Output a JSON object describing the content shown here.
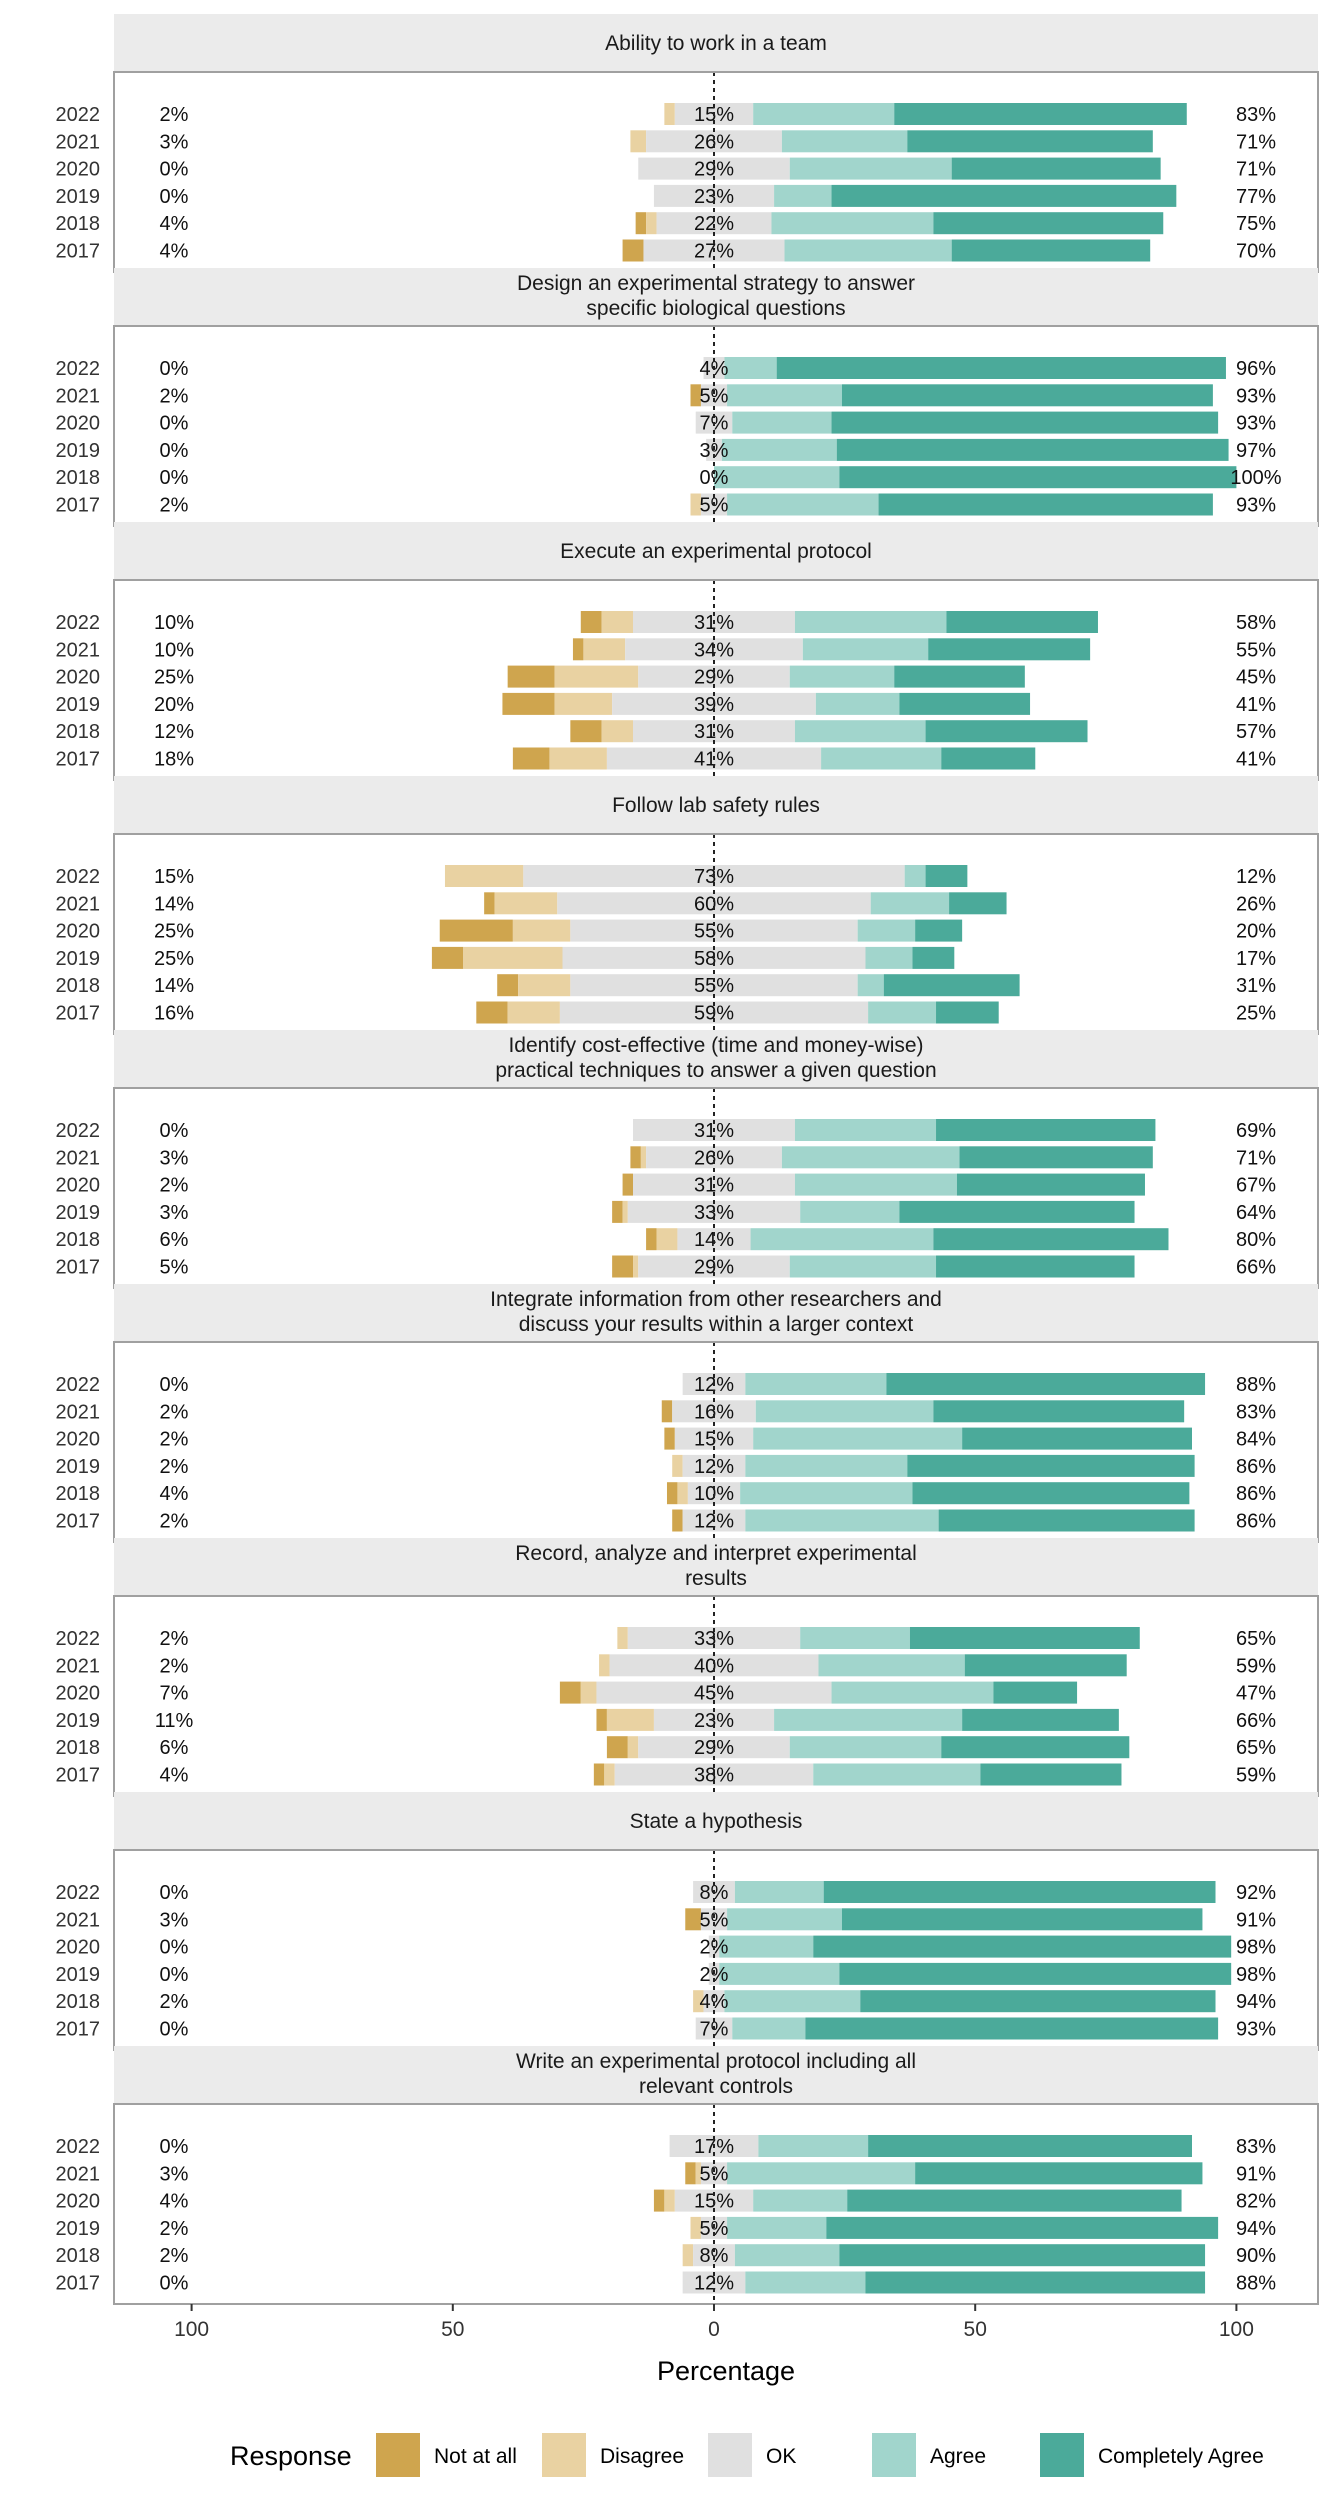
{
  "chart_data": {
    "type": "bar",
    "subtype": "diverging-stacked-likert",
    "xlabel": "Percentage",
    "xlim": [
      -100,
      100
    ],
    "x_ticks": [
      -100,
      -50,
      0,
      50,
      100
    ],
    "x_tick_labels": [
      "100",
      "50",
      "0",
      "50",
      "100"
    ],
    "legend": {
      "title": "Response",
      "placement": "bottom",
      "entries": [
        "Not at all",
        "Disagree",
        "OK",
        "Agree",
        "Completely Agree"
      ]
    },
    "colors": {
      "Not at all": "#CFA54E",
      "Disagree": "#E9D2A2",
      "OK": "#E0E0E0",
      "Agree": "#A1D5CC",
      "Completely Agree": "#4BAA9A"
    },
    "categories": [
      "2022",
      "2021",
      "2020",
      "2019",
      "2018",
      "2017"
    ],
    "facets": [
      {
        "title": [
          "Ability to work in a team"
        ],
        "rows": [
          {
            "year": "2022",
            "left_label": "2%",
            "center_label": "15%",
            "right_label": "83%",
            "values": [
              0,
              2,
              15,
              27,
              56
            ]
          },
          {
            "year": "2021",
            "left_label": "3%",
            "center_label": "26%",
            "right_label": "71%",
            "values": [
              0,
              3,
              26,
              24,
              47
            ]
          },
          {
            "year": "2020",
            "left_label": "0%",
            "center_label": "29%",
            "right_label": "71%",
            "values": [
              0,
              0,
              29,
              31,
              40
            ]
          },
          {
            "year": "2019",
            "left_label": "0%",
            "center_label": "23%",
            "right_label": "77%",
            "values": [
              0,
              0,
              23,
              11,
              66
            ]
          },
          {
            "year": "2018",
            "left_label": "4%",
            "center_label": "22%",
            "right_label": "75%",
            "values": [
              2,
              2,
              22,
              31,
              44
            ]
          },
          {
            "year": "2017",
            "left_label": "4%",
            "center_label": "27%",
            "right_label": "70%",
            "values": [
              4,
              0,
              27,
              32,
              38
            ]
          }
        ]
      },
      {
        "title": [
          "Design an experimental strategy to answer",
          "specific biological questions"
        ],
        "rows": [
          {
            "year": "2022",
            "left_label": "0%",
            "center_label": "4%",
            "right_label": "96%",
            "values": [
              0,
              0,
              4,
              10,
              86
            ]
          },
          {
            "year": "2021",
            "left_label": "2%",
            "center_label": "5%",
            "right_label": "93%",
            "values": [
              2,
              0,
              5,
              22,
              71
            ]
          },
          {
            "year": "2020",
            "left_label": "0%",
            "center_label": "7%",
            "right_label": "93%",
            "values": [
              0,
              0,
              7,
              19,
              74
            ]
          },
          {
            "year": "2019",
            "left_label": "0%",
            "center_label": "3%",
            "right_label": "97%",
            "values": [
              0,
              0,
              3,
              22,
              75
            ]
          },
          {
            "year": "2018",
            "left_label": "0%",
            "center_label": "0%",
            "right_label": "100%",
            "values": [
              0,
              0,
              0,
              24,
              76
            ]
          },
          {
            "year": "2017",
            "left_label": "2%",
            "center_label": "5%",
            "right_label": "93%",
            "values": [
              0,
              2,
              5,
              29,
              64
            ]
          }
        ]
      },
      {
        "title": [
          "Execute an experimental protocol"
        ],
        "rows": [
          {
            "year": "2022",
            "left_label": "10%",
            "center_label": "31%",
            "right_label": "58%",
            "values": [
              4,
              6,
              31,
              29,
              29
            ]
          },
          {
            "year": "2021",
            "left_label": "10%",
            "center_label": "34%",
            "right_label": "55%",
            "values": [
              2,
              8,
              34,
              24,
              31
            ]
          },
          {
            "year": "2020",
            "left_label": "25%",
            "center_label": "29%",
            "right_label": "45%",
            "values": [
              9,
              16,
              29,
              20,
              25
            ]
          },
          {
            "year": "2019",
            "left_label": "20%",
            "center_label": "39%",
            "right_label": "41%",
            "values": [
              10,
              11,
              39,
              16,
              25
            ]
          },
          {
            "year": "2018",
            "left_label": "12%",
            "center_label": "31%",
            "right_label": "57%",
            "values": [
              6,
              6,
              31,
              25,
              31
            ]
          },
          {
            "year": "2017",
            "left_label": "18%",
            "center_label": "41%",
            "right_label": "41%",
            "values": [
              7,
              11,
              41,
              23,
              18
            ]
          }
        ]
      },
      {
        "title": [
          "Follow lab safety rules"
        ],
        "rows": [
          {
            "year": "2022",
            "left_label": "15%",
            "center_label": "73%",
            "right_label": "12%",
            "values": [
              0,
              15,
              73,
              4,
              8
            ]
          },
          {
            "year": "2021",
            "left_label": "14%",
            "center_label": "60%",
            "right_label": "26%",
            "values": [
              2,
              12,
              60,
              15,
              11
            ]
          },
          {
            "year": "2020",
            "left_label": "25%",
            "center_label": "55%",
            "right_label": "20%",
            "values": [
              14,
              11,
              55,
              11,
              9
            ]
          },
          {
            "year": "2019",
            "left_label": "25%",
            "center_label": "58%",
            "right_label": "17%",
            "values": [
              6,
              19,
              58,
              9,
              8
            ]
          },
          {
            "year": "2018",
            "left_label": "14%",
            "center_label": "55%",
            "right_label": "31%",
            "values": [
              4,
              10,
              55,
              5,
              26
            ]
          },
          {
            "year": "2017",
            "left_label": "16%",
            "center_label": "59%",
            "right_label": "25%",
            "values": [
              6,
              10,
              59,
              13,
              12
            ]
          }
        ]
      },
      {
        "title": [
          "Identify cost-effective (time and money-wise)",
          "practical techniques to answer a given question"
        ],
        "rows": [
          {
            "year": "2022",
            "left_label": "0%",
            "center_label": "31%",
            "right_label": "69%",
            "values": [
              0,
              0,
              31,
              27,
              42
            ]
          },
          {
            "year": "2021",
            "left_label": "3%",
            "center_label": "26%",
            "right_label": "71%",
            "values": [
              2,
              1,
              26,
              34,
              37
            ]
          },
          {
            "year": "2020",
            "left_label": "2%",
            "center_label": "31%",
            "right_label": "67%",
            "values": [
              2,
              0,
              31,
              31,
              36
            ]
          },
          {
            "year": "2019",
            "left_label": "3%",
            "center_label": "33%",
            "right_label": "64%",
            "values": [
              2,
              1,
              33,
              19,
              45
            ]
          },
          {
            "year": "2018",
            "left_label": "6%",
            "center_label": "14%",
            "right_label": "80%",
            "values": [
              2,
              4,
              14,
              35,
              45
            ]
          },
          {
            "year": "2017",
            "left_label": "5%",
            "center_label": "29%",
            "right_label": "66%",
            "values": [
              4,
              1,
              29,
              28,
              38
            ]
          }
        ]
      },
      {
        "title": [
          "Integrate information from other researchers and",
          "discuss your results within a larger context"
        ],
        "rows": [
          {
            "year": "2022",
            "left_label": "0%",
            "center_label": "12%",
            "right_label": "88%",
            "values": [
              0,
              0,
              12,
              27,
              61
            ]
          },
          {
            "year": "2021",
            "left_label": "2%",
            "center_label": "16%",
            "right_label": "83%",
            "values": [
              2,
              0,
              16,
              34,
              48
            ]
          },
          {
            "year": "2020",
            "left_label": "2%",
            "center_label": "15%",
            "right_label": "84%",
            "values": [
              2,
              0,
              15,
              40,
              44
            ]
          },
          {
            "year": "2019",
            "left_label": "2%",
            "center_label": "12%",
            "right_label": "86%",
            "values": [
              0,
              2,
              12,
              31,
              55
            ]
          },
          {
            "year": "2018",
            "left_label": "4%",
            "center_label": "10%",
            "right_label": "86%",
            "values": [
              2,
              2,
              10,
              33,
              53
            ]
          },
          {
            "year": "2017",
            "left_label": "2%",
            "center_label": "12%",
            "right_label": "86%",
            "values": [
              2,
              0,
              12,
              37,
              49
            ]
          }
        ]
      },
      {
        "title": [
          "Record, analyze and interpret experimental",
          "results"
        ],
        "rows": [
          {
            "year": "2022",
            "left_label": "2%",
            "center_label": "33%",
            "right_label": "65%",
            "values": [
              0,
              2,
              33,
              21,
              44
            ]
          },
          {
            "year": "2021",
            "left_label": "2%",
            "center_label": "40%",
            "right_label": "59%",
            "values": [
              0,
              2,
              40,
              28,
              31
            ]
          },
          {
            "year": "2020",
            "left_label": "7%",
            "center_label": "45%",
            "right_label": "47%",
            "values": [
              4,
              3,
              45,
              31,
              16
            ]
          },
          {
            "year": "2019",
            "left_label": "11%",
            "center_label": "23%",
            "right_label": "66%",
            "values": [
              2,
              9,
              23,
              36,
              30
            ]
          },
          {
            "year": "2018",
            "left_label": "6%",
            "center_label": "29%",
            "right_label": "65%",
            "values": [
              4,
              2,
              29,
              29,
              36
            ]
          },
          {
            "year": "2017",
            "left_label": "4%",
            "center_label": "38%",
            "right_label": "59%",
            "values": [
              2,
              2,
              38,
              32,
              27
            ]
          }
        ]
      },
      {
        "title": [
          "State a hypothesis"
        ],
        "rows": [
          {
            "year": "2022",
            "left_label": "0%",
            "center_label": "8%",
            "right_label": "92%",
            "values": [
              0,
              0,
              8,
              17,
              75
            ]
          },
          {
            "year": "2021",
            "left_label": "3%",
            "center_label": "5%",
            "right_label": "91%",
            "values": [
              3,
              0,
              5,
              22,
              69
            ]
          },
          {
            "year": "2020",
            "left_label": "0%",
            "center_label": "2%",
            "right_label": "98%",
            "values": [
              0,
              0,
              2,
              18,
              80
            ]
          },
          {
            "year": "2019",
            "left_label": "0%",
            "center_label": "2%",
            "right_label": "98%",
            "values": [
              0,
              0,
              2,
              23,
              75
            ]
          },
          {
            "year": "2018",
            "left_label": "2%",
            "center_label": "4%",
            "right_label": "94%",
            "values": [
              0,
              2,
              4,
              26,
              68
            ]
          },
          {
            "year": "2017",
            "left_label": "0%",
            "center_label": "7%",
            "right_label": "93%",
            "values": [
              0,
              0,
              7,
              14,
              79
            ]
          }
        ]
      },
      {
        "title": [
          "Write an experimental protocol including all",
          "relevant controls"
        ],
        "rows": [
          {
            "year": "2022",
            "left_label": "0%",
            "center_label": "17%",
            "right_label": "83%",
            "values": [
              0,
              0,
              17,
              21,
              62
            ]
          },
          {
            "year": "2021",
            "left_label": "3%",
            "center_label": "5%",
            "right_label": "91%",
            "values": [
              2,
              1,
              5,
              36,
              55
            ]
          },
          {
            "year": "2020",
            "left_label": "4%",
            "center_label": "15%",
            "right_label": "82%",
            "values": [
              2,
              2,
              15,
              18,
              64
            ]
          },
          {
            "year": "2019",
            "left_label": "2%",
            "center_label": "5%",
            "right_label": "94%",
            "values": [
              0,
              2,
              5,
              19,
              75
            ]
          },
          {
            "year": "2018",
            "left_label": "2%",
            "center_label": "8%",
            "right_label": "90%",
            "values": [
              0,
              2,
              8,
              20,
              70
            ]
          },
          {
            "year": "2017",
            "left_label": "0%",
            "center_label": "12%",
            "right_label": "88%",
            "values": [
              0,
              0,
              12,
              23,
              65
            ]
          }
        ]
      }
    ]
  }
}
